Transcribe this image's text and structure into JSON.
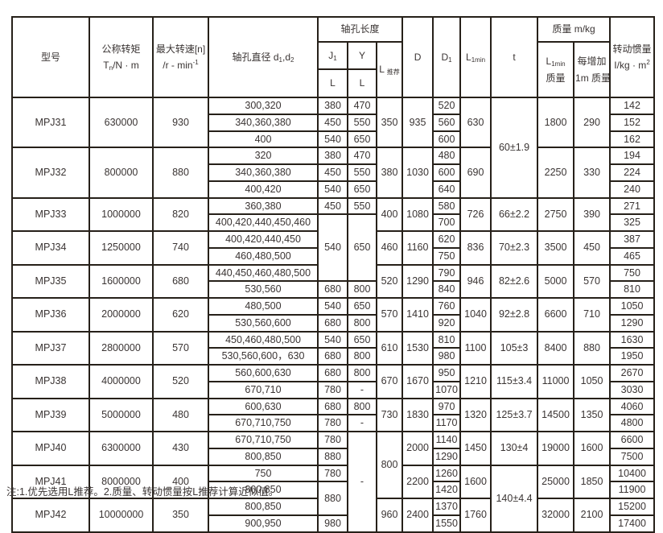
{
  "note": "注:1.优先选用L推荐。2.质量、转动惯量按L推荐计算近似值。",
  "table": {
    "header": [
      [
        {
          "n": "col-header-model",
          "rs": 3,
          "t": "型号"
        },
        {
          "n": "col-header-torque",
          "rs": 3,
          "l": [
            [
              "公称转矩"
            ],
            [
              "T",
              {
                "t": "n"
              },
              "/N · m"
            ]
          ]
        },
        {
          "n": "col-header-max-speed",
          "rs": 3,
          "l": [
            [
              "最大转速[n]"
            ],
            [
              "/r - min",
              {
                "t": "-1",
                "s": "p"
              }
            ]
          ]
        },
        {
          "n": "col-header-bore-diameter",
          "rs": 3,
          "l": [
            [
              "轴孔直径 d",
              {
                "t": "1"
              },
              ",d",
              {
                "t": "2"
              }
            ]
          ]
        },
        {
          "n": "col-header-bore-length-group",
          "cs": 3,
          "t": "轴孔长度"
        },
        {
          "n": "col-header-D",
          "rs": 3,
          "t": "D"
        },
        {
          "n": "col-header-D1",
          "rs": 3,
          "l": [
            [
              "D",
              {
                "t": "1"
              }
            ]
          ]
        },
        {
          "n": "col-header-L1min",
          "rs": 3,
          "l": [
            [
              "L",
              {
                "t": "1min"
              }
            ]
          ]
        },
        {
          "n": "col-header-t",
          "rs": 3,
          "t": "t"
        },
        {
          "n": "col-header-mass-group",
          "cs": 2,
          "t": "质量  m/kg"
        },
        {
          "n": "col-header-inertia",
          "rs": 3,
          "l": [
            [
              "转动惯量"
            ],
            [
              "I/kg · m",
              {
                "t": "2",
                "s": "p"
              }
            ]
          ]
        }
      ],
      [
        {
          "n": "col-header-J1",
          "l": [
            [
              "J",
              {
                "t": "1"
              }
            ]
          ]
        },
        {
          "n": "col-header-Y",
          "t": "Y"
        },
        {
          "n": "col-header-L-recommended",
          "rs": 2,
          "l": [
            [
              "L ",
              {
                "t": "推荐"
              }
            ]
          ]
        },
        {
          "n": "col-header-L1min-mass",
          "rs": 2,
          "l": [
            [
              "L",
              {
                "t": "1min"
              }
            ],
            [
              "质量"
            ]
          ]
        },
        {
          "n": "col-header-per-meter-mass",
          "rs": 2,
          "l": [
            [
              "每增加"
            ],
            [
              "1m 质量"
            ]
          ]
        }
      ],
      [
        {
          "n": "col-header-J1-L",
          "t": "L"
        },
        {
          "n": "col-header-Y-L",
          "t": "L"
        }
      ]
    ],
    "body": [
      [
        {
          "n": "cell-model-mpj31",
          "t": "MPJ31",
          "rs": 3
        },
        {
          "t": "630000",
          "rs": 3
        },
        {
          "t": "930",
          "rs": 3
        },
        {
          "t": "300,320"
        },
        {
          "t": "380"
        },
        {
          "t": "470"
        },
        {
          "t": "350",
          "rs": 3
        },
        {
          "t": "935",
          "rs": 3
        },
        {
          "t": "520"
        },
        {
          "t": "630",
          "rs": 3
        },
        {
          "t": "60±1.9",
          "rs": 6
        },
        {
          "t": "1800",
          "rs": 3
        },
        {
          "t": "290",
          "rs": 3
        },
        {
          "t": "142"
        }
      ],
      [
        {
          "t": "340,360,380"
        },
        {
          "t": "450"
        },
        {
          "t": "550"
        },
        {
          "t": "560"
        },
        {
          "t": "152"
        }
      ],
      [
        {
          "t": "400"
        },
        {
          "t": "540"
        },
        {
          "t": "650"
        },
        {
          "t": "600"
        },
        {
          "t": "162"
        }
      ],
      [
        {
          "n": "cell-model-mpj32",
          "t": "MPJ32",
          "rs": 3
        },
        {
          "t": "800000",
          "rs": 3
        },
        {
          "t": "880",
          "rs": 3
        },
        {
          "t": "320"
        },
        {
          "t": "380"
        },
        {
          "t": "470"
        },
        {
          "t": "380",
          "rs": 3
        },
        {
          "t": "1030",
          "rs": 3
        },
        {
          "t": "480"
        },
        {
          "t": "690",
          "rs": 3
        },
        {
          "t": "2250",
          "rs": 3
        },
        {
          "t": "330",
          "rs": 3
        },
        {
          "t": "194"
        }
      ],
      [
        {
          "t": "340,360,380"
        },
        {
          "t": "450"
        },
        {
          "t": "550"
        },
        {
          "t": "600"
        },
        {
          "t": "224"
        }
      ],
      [
        {
          "t": "400,420"
        },
        {
          "t": "540"
        },
        {
          "t": "650"
        },
        {
          "t": "640"
        },
        {
          "t": "240"
        }
      ],
      [
        {
          "n": "cell-model-mpj33",
          "t": "MPJ33",
          "rs": 2
        },
        {
          "t": "1000000",
          "rs": 2
        },
        {
          "t": "820",
          "rs": 2
        },
        {
          "t": "360,380"
        },
        {
          "t": "450"
        },
        {
          "t": "550"
        },
        {
          "t": "400",
          "rs": 2
        },
        {
          "t": "1080",
          "rs": 2
        },
        {
          "t": "580"
        },
        {
          "t": "726",
          "rs": 2
        },
        {
          "t": "66±2.2",
          "rs": 2
        },
        {
          "t": "2750",
          "rs": 2
        },
        {
          "t": "390",
          "rs": 2
        },
        {
          "t": "271"
        }
      ],
      [
        {
          "t": "400,420,440,450,460"
        },
        {
          "t": "540",
          "rs": 4
        },
        {
          "t": "650",
          "rs": 4
        },
        {
          "t": "700"
        },
        {
          "t": "325"
        }
      ],
      [
        {
          "n": "cell-model-mpj34",
          "t": "MPJ34",
          "rs": 2
        },
        {
          "t": "1250000",
          "rs": 2
        },
        {
          "t": "740",
          "rs": 2
        },
        {
          "t": "400,420,440,450"
        },
        {
          "t": "460",
          "rs": 2
        },
        {
          "t": "1160",
          "rs": 2
        },
        {
          "t": "620"
        },
        {
          "t": "836",
          "rs": 2
        },
        {
          "t": "70±2.3",
          "rs": 2
        },
        {
          "t": "3500",
          "rs": 2
        },
        {
          "t": "450",
          "rs": 2
        },
        {
          "t": "387"
        }
      ],
      [
        {
          "t": "460,480,500"
        },
        {
          "t": "750"
        },
        {
          "t": "465"
        }
      ],
      [
        {
          "n": "cell-model-mpj35",
          "t": "MPJ35",
          "rs": 2
        },
        {
          "t": "1600000",
          "rs": 2
        },
        {
          "t": "680",
          "rs": 2
        },
        {
          "t": "440,450,460,480,500"
        },
        {
          "t": "520",
          "rs": 2
        },
        {
          "t": "1290",
          "rs": 2
        },
        {
          "t": "790"
        },
        {
          "t": "946",
          "rs": 2
        },
        {
          "t": "82±2.6",
          "rs": 2
        },
        {
          "t": "5000",
          "rs": 2
        },
        {
          "t": "570",
          "rs": 2
        },
        {
          "t": "750"
        }
      ],
      [
        {
          "t": "530,560"
        },
        {
          "t": "680"
        },
        {
          "t": "800"
        },
        {
          "t": "840"
        },
        {
          "t": "810"
        }
      ],
      [
        {
          "n": "cell-model-mpj36",
          "t": "MPJ36",
          "rs": 2
        },
        {
          "t": "2000000",
          "rs": 2
        },
        {
          "t": "620",
          "rs": 2
        },
        {
          "t": "480,500"
        },
        {
          "t": "540"
        },
        {
          "t": "650"
        },
        {
          "t": "570",
          "rs": 2
        },
        {
          "t": "1410",
          "rs": 2
        },
        {
          "t": "760"
        },
        {
          "t": "1040",
          "rs": 2
        },
        {
          "t": "92±2.8",
          "rs": 2
        },
        {
          "t": "6600",
          "rs": 2
        },
        {
          "t": "710",
          "rs": 2
        },
        {
          "t": "1050"
        }
      ],
      [
        {
          "t": "530,560,600"
        },
        {
          "t": "680"
        },
        {
          "t": "800"
        },
        {
          "t": "920"
        },
        {
          "t": "1290"
        }
      ],
      [
        {
          "n": "cell-model-mpj37",
          "t": "MPJ37",
          "rs": 2
        },
        {
          "t": "2800000",
          "rs": 2
        },
        {
          "t": "570",
          "rs": 2
        },
        {
          "t": "450,460,480,500"
        },
        {
          "t": "540"
        },
        {
          "t": "650"
        },
        {
          "t": "610",
          "rs": 2
        },
        {
          "t": "1530",
          "rs": 2
        },
        {
          "t": "810"
        },
        {
          "t": "1100",
          "rs": 2
        },
        {
          "t": "105±3",
          "rs": 2
        },
        {
          "t": "8400",
          "rs": 2
        },
        {
          "t": "880",
          "rs": 2
        },
        {
          "t": "1630"
        }
      ],
      [
        {
          "t": "530,560,600，630"
        },
        {
          "t": "680"
        },
        {
          "t": "800"
        },
        {
          "t": "980"
        },
        {
          "t": "1950"
        }
      ],
      [
        {
          "n": "cell-model-mpj38",
          "t": "MPJ38",
          "rs": 2
        },
        {
          "t": "4000000",
          "rs": 2
        },
        {
          "t": "520",
          "rs": 2
        },
        {
          "t": "560,600,630"
        },
        {
          "t": "680"
        },
        {
          "t": "800"
        },
        {
          "t": "670",
          "rs": 2
        },
        {
          "t": "1670",
          "rs": 2
        },
        {
          "t": "950"
        },
        {
          "t": "1210",
          "rs": 2
        },
        {
          "t": "115±3.4",
          "rs": 2
        },
        {
          "t": "11000",
          "rs": 2
        },
        {
          "t": "1050",
          "rs": 2
        },
        {
          "t": "2670"
        }
      ],
      [
        {
          "t": "670,710"
        },
        {
          "t": "780"
        },
        {
          "t": "-"
        },
        {
          "t": "1070"
        },
        {
          "t": "3030"
        }
      ],
      [
        {
          "n": "cell-model-mpj39",
          "t": "MPJ39",
          "rs": 2
        },
        {
          "t": "5000000",
          "rs": 2
        },
        {
          "t": "480",
          "rs": 2
        },
        {
          "t": "600,630"
        },
        {
          "t": "680"
        },
        {
          "t": "800"
        },
        {
          "t": "730",
          "rs": 2
        },
        {
          "t": "1830",
          "rs": 2
        },
        {
          "t": "970"
        },
        {
          "t": "1320",
          "rs": 2
        },
        {
          "t": "125±3.7",
          "rs": 2
        },
        {
          "t": "14500",
          "rs": 2
        },
        {
          "t": "1350",
          "rs": 2
        },
        {
          "t": "4060"
        }
      ],
      [
        {
          "t": "670,710,750"
        },
        {
          "t": "780"
        },
        {
          "t": "-"
        },
        {
          "t": "1170"
        },
        {
          "t": "4800"
        }
      ],
      [
        {
          "n": "cell-model-mpj40",
          "t": "MPJ40",
          "rs": 2
        },
        {
          "t": "6300000",
          "rs": 2
        },
        {
          "t": "430",
          "rs": 2
        },
        {
          "t": "670,710,750"
        },
        {
          "t": "780"
        },
        {
          "t": "-",
          "rs": 6
        },
        {
          "t": "800",
          "rs": 4
        },
        {
          "t": "2000",
          "rs": 2
        },
        {
          "t": "1140"
        },
        {
          "t": "1450",
          "rs": 2
        },
        {
          "t": "130±4",
          "rs": 2
        },
        {
          "t": "19000",
          "rs": 2
        },
        {
          "t": "1600",
          "rs": 2
        },
        {
          "t": "6600"
        }
      ],
      [
        {
          "t": "800,850"
        },
        {
          "t": "880"
        },
        {
          "t": "1290"
        },
        {
          "t": "7500"
        }
      ],
      [
        {
          "n": "cell-model-mpj41",
          "t": "MPJ41",
          "rs": 2
        },
        {
          "t": "8000000",
          "rs": 2
        },
        {
          "t": "400",
          "rs": 2
        },
        {
          "t": "750"
        },
        {
          "t": "780"
        },
        {
          "t": "2200",
          "rs": 2
        },
        {
          "t": "1260"
        },
        {
          "t": "1600",
          "rs": 2
        },
        {
          "t": "140±4.4",
          "rs": 4
        },
        {
          "t": "25000",
          "rs": 2
        },
        {
          "t": "1850",
          "rs": 2
        },
        {
          "t": "10400"
        }
      ],
      [
        {
          "t": "800,850"
        },
        {
          "t": "880",
          "rs": 2
        },
        {
          "t": "1420"
        },
        {
          "t": "11900"
        }
      ],
      [
        {
          "n": "cell-model-mpj42",
          "t": "MPJ42",
          "rs": 2
        },
        {
          "t": "10000000",
          "rs": 2
        },
        {
          "t": "350",
          "rs": 2
        },
        {
          "t": "800,850"
        },
        {
          "t": "960",
          "rs": 2
        },
        {
          "t": "2400",
          "rs": 2
        },
        {
          "t": "1370"
        },
        {
          "t": "1760",
          "rs": 2
        },
        {
          "t": "32000",
          "rs": 2
        },
        {
          "t": "2100",
          "rs": 2
        },
        {
          "t": "15200"
        }
      ],
      [
        {
          "t": "900,950"
        },
        {
          "t": "980"
        },
        {
          "t": "1550"
        },
        {
          "t": "17400"
        }
      ]
    ]
  }
}
